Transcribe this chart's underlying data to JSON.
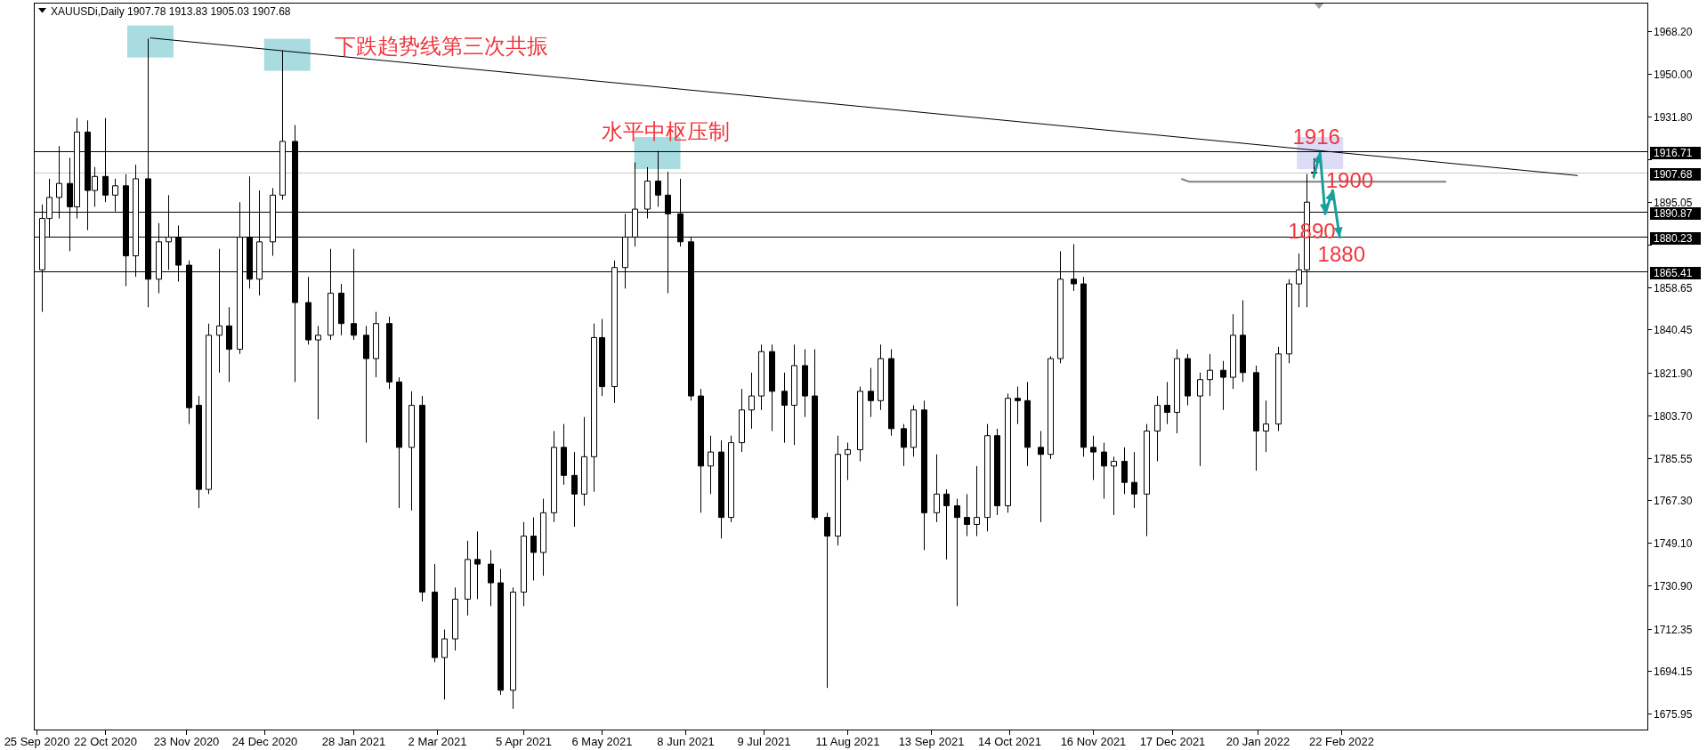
{
  "chart_data": {
    "type": "candlestick",
    "title": "XAUUSDi,Daily 1907.78 1913.83 1905.03 1907.68",
    "color": "#000000",
    "x": [
      "2020-09-27",
      "2020-09-30",
      "2020-10-04",
      "2020-10-08",
      "2020-10-11",
      "2020-10-15",
      "2020-10-18",
      "2020-10-22",
      "2020-10-26",
      "2020-10-30",
      "2020-11-03",
      "2020-11-08",
      "2020-11-12",
      "2020-11-16",
      "2020-11-20",
      "2020-11-24",
      "2020-11-28",
      "2020-12-02",
      "2020-12-06",
      "2020-12-10",
      "2020-12-14",
      "2020-12-18",
      "2020-12-22",
      "2020-12-27",
      "2020-12-31",
      "2021-01-05",
      "2021-01-10",
      "2021-01-14",
      "2021-01-19",
      "2021-01-23",
      "2021-01-28",
      "2021-02-02",
      "2021-02-06",
      "2021-02-11",
      "2021-02-15",
      "2021-02-20",
      "2021-02-24",
      "2021-03-01",
      "2021-03-05",
      "2021-03-09",
      "2021-03-14",
      "2021-03-18",
      "2021-03-23",
      "2021-03-27",
      "2021-04-01",
      "2021-04-05",
      "2021-04-09",
      "2021-04-13",
      "2021-04-17",
      "2021-04-21",
      "2021-04-25",
      "2021-04-29",
      "2021-05-03",
      "2021-05-06",
      "2021-05-11",
      "2021-05-15",
      "2021-05-19",
      "2021-05-24",
      "2021-05-28",
      "2021-06-01",
      "2021-06-06",
      "2021-06-10",
      "2021-06-14",
      "2021-06-18",
      "2021-06-22",
      "2021-06-26",
      "2021-06-30",
      "2021-07-04",
      "2021-07-08",
      "2021-07-12",
      "2021-07-17",
      "2021-07-21",
      "2021-07-25",
      "2021-07-29",
      "2021-08-03",
      "2021-08-07",
      "2021-08-11",
      "2021-08-16",
      "2021-08-20",
      "2021-08-24",
      "2021-08-28",
      "2021-09-02",
      "2021-09-06",
      "2021-09-10",
      "2021-09-15",
      "2021-09-19",
      "2021-09-23",
      "2021-09-27",
      "2021-10-01",
      "2021-10-05",
      "2021-10-09",
      "2021-10-13",
      "2021-10-17",
      "2021-10-21",
      "2021-10-26",
      "2021-10-30",
      "2021-11-03",
      "2021-11-08",
      "2021-11-12",
      "2021-11-16",
      "2021-11-20",
      "2021-11-24",
      "2021-11-28",
      "2021-12-02",
      "2021-12-07",
      "2021-12-11",
      "2021-12-15",
      "2021-12-19",
      "2021-12-23",
      "2021-12-28",
      "2022-01-01",
      "2022-01-06",
      "2022-01-10",
      "2022-01-14",
      "2022-01-19",
      "2022-01-23",
      "2022-01-28",
      "2022-02-01",
      "2022-02-05",
      "2022-02-08",
      "2022-02-11"
    ],
    "ohlc": [
      [
        1866,
        1894,
        1848,
        1888
      ],
      [
        1888,
        1905,
        1880,
        1897
      ],
      [
        1897,
        1919,
        1888,
        1903
      ],
      [
        1903,
        1914,
        1874,
        1893
      ],
      [
        1893,
        1931,
        1888,
        1925
      ],
      [
        1925,
        1930,
        1883,
        1900
      ],
      [
        1900,
        1910,
        1893,
        1906
      ],
      [
        1906,
        1931,
        1895,
        1898
      ],
      [
        1898,
        1905,
        1891,
        1902
      ],
      [
        1902,
        1907,
        1859,
        1872
      ],
      [
        1872,
        1911,
        1863,
        1905
      ],
      [
        1905,
        1965,
        1850,
        1862
      ],
      [
        1862,
        1886,
        1856,
        1878
      ],
      [
        1878,
        1898,
        1866,
        1880
      ],
      [
        1880,
        1885,
        1861,
        1868
      ],
      [
        1868,
        1870,
        1800,
        1807
      ],
      [
        1808,
        1812,
        1764,
        1772
      ],
      [
        1772,
        1843,
        1770,
        1838
      ],
      [
        1838,
        1875,
        1822,
        1842
      ],
      [
        1842,
        1850,
        1818,
        1832
      ],
      [
        1832,
        1895,
        1830,
        1880
      ],
      [
        1880,
        1906,
        1858,
        1862
      ],
      [
        1862,
        1900,
        1855,
        1878
      ],
      [
        1878,
        1901,
        1872,
        1898
      ],
      [
        1898,
        1960,
        1896,
        1921
      ],
      [
        1921,
        1928,
        1818,
        1852
      ],
      [
        1852,
        1863,
        1834,
        1836
      ],
      [
        1836,
        1842,
        1802,
        1838
      ],
      [
        1838,
        1875,
        1836,
        1856
      ],
      [
        1856,
        1860,
        1838,
        1843
      ],
      [
        1843,
        1875,
        1836,
        1838
      ],
      [
        1838,
        1842,
        1792,
        1828
      ],
      [
        1828,
        1848,
        1820,
        1843
      ],
      [
        1843,
        1846,
        1815,
        1818
      ],
      [
        1818,
        1820,
        1764,
        1790
      ],
      [
        1790,
        1814,
        1763,
        1808
      ],
      [
        1808,
        1812,
        1724,
        1728
      ],
      [
        1728,
        1740,
        1698,
        1700
      ],
      [
        1700,
        1712,
        1682,
        1708
      ],
      [
        1708,
        1730,
        1703,
        1725
      ],
      [
        1725,
        1750,
        1718,
        1742
      ],
      [
        1742,
        1754,
        1725,
        1740
      ],
      [
        1740,
        1746,
        1722,
        1732
      ],
      [
        1732,
        1738,
        1684,
        1686
      ],
      [
        1686,
        1730,
        1678,
        1728
      ],
      [
        1728,
        1758,
        1722,
        1752
      ],
      [
        1752,
        1760,
        1733,
        1745
      ],
      [
        1745,
        1768,
        1735,
        1762
      ],
      [
        1762,
        1797,
        1758,
        1790
      ],
      [
        1790,
        1800,
        1774,
        1778
      ],
      [
        1778,
        1788,
        1756,
        1770
      ],
      [
        1770,
        1803,
        1765,
        1786
      ],
      [
        1786,
        1843,
        1771,
        1837
      ],
      [
        1837,
        1845,
        1812,
        1816
      ],
      [
        1816,
        1870,
        1809,
        1867
      ],
      [
        1867,
        1890,
        1858,
        1880
      ],
      [
        1880,
        1912,
        1876,
        1892
      ],
      [
        1892,
        1910,
        1888,
        1904
      ],
      [
        1904,
        1917,
        1893,
        1898
      ],
      [
        1898,
        1908,
        1856,
        1890
      ],
      [
        1890,
        1905,
        1876,
        1878
      ],
      [
        1878,
        1880,
        1810,
        1812
      ],
      [
        1812,
        1815,
        1762,
        1782
      ],
      [
        1782,
        1795,
        1770,
        1788
      ],
      [
        1788,
        1793,
        1751,
        1760
      ],
      [
        1760,
        1795,
        1758,
        1792
      ],
      [
        1792,
        1815,
        1788,
        1806
      ],
      [
        1806,
        1822,
        1798,
        1812
      ],
      [
        1812,
        1834,
        1806,
        1831
      ],
      [
        1831,
        1834,
        1797,
        1814
      ],
      [
        1814,
        1822,
        1792,
        1808
      ],
      [
        1808,
        1834,
        1791,
        1825
      ],
      [
        1825,
        1832,
        1803,
        1812
      ],
      [
        1812,
        1832,
        1759,
        1760
      ],
      [
        1760,
        1762,
        1687,
        1752
      ],
      [
        1752,
        1795,
        1748,
        1787
      ],
      [
        1787,
        1792,
        1776,
        1789
      ],
      [
        1789,
        1816,
        1784,
        1814
      ],
      [
        1814,
        1824,
        1803,
        1810
      ],
      [
        1810,
        1834,
        1806,
        1828
      ],
      [
        1828,
        1832,
        1795,
        1798
      ],
      [
        1798,
        1800,
        1782,
        1790
      ],
      [
        1790,
        1808,
        1786,
        1806
      ],
      [
        1806,
        1810,
        1746,
        1762
      ],
      [
        1762,
        1787,
        1758,
        1770
      ],
      [
        1770,
        1772,
        1742,
        1765
      ],
      [
        1765,
        1768,
        1722,
        1760
      ],
      [
        1760,
        1770,
        1752,
        1757
      ],
      [
        1757,
        1782,
        1752,
        1760
      ],
      [
        1760,
        1800,
        1754,
        1795
      ],
      [
        1795,
        1798,
        1761,
        1765
      ],
      [
        1765,
        1813,
        1762,
        1811
      ],
      [
        1811,
        1816,
        1800,
        1810
      ],
      [
        1810,
        1818,
        1782,
        1790
      ],
      [
        1790,
        1797,
        1758,
        1787
      ],
      [
        1787,
        1829,
        1785,
        1828
      ],
      [
        1828,
        1874,
        1826,
        1862
      ],
      [
        1862,
        1877,
        1857,
        1860
      ],
      [
        1860,
        1863,
        1786,
        1790
      ],
      [
        1790,
        1795,
        1776,
        1788
      ],
      [
        1788,
        1792,
        1768,
        1782
      ],
      [
        1782,
        1786,
        1761,
        1784
      ],
      [
        1784,
        1790,
        1770,
        1775
      ],
      [
        1775,
        1788,
        1764,
        1770
      ],
      [
        1770,
        1800,
        1752,
        1797
      ],
      [
        1797,
        1812,
        1784,
        1808
      ],
      [
        1808,
        1818,
        1800,
        1805
      ],
      [
        1805,
        1832,
        1796,
        1828
      ],
      [
        1828,
        1830,
        1808,
        1812
      ],
      [
        1812,
        1822,
        1782,
        1819
      ],
      [
        1819,
        1830,
        1812,
        1823
      ],
      [
        1823,
        1827,
        1806,
        1820
      ],
      [
        1820,
        1847,
        1815,
        1838
      ],
      [
        1838,
        1853,
        1818,
        1822
      ],
      [
        1822,
        1825,
        1780,
        1797
      ],
      [
        1797,
        1810,
        1788,
        1800
      ],
      [
        1800,
        1833,
        1797,
        1830
      ],
      [
        1830,
        1862,
        1826,
        1860
      ],
      [
        1860,
        1873,
        1850,
        1866
      ],
      [
        1866,
        1907,
        1850,
        1895
      ],
      [
        1907.78,
        1913.83,
        1905.03,
        1907.68
      ]
    ],
    "series": [
      {
        "type": "line",
        "x": [
          "2020-11-09",
          "2021-01-02",
          "2022-05-26"
        ],
        "values": [
          1965.3,
          1959.6,
          1906.4
        ],
        "color": "#000000"
      },
      {
        "type": "line",
        "x": [
          "2021-12-21",
          "2021-12-24",
          "2022-04-04"
        ],
        "values": [
          1904.9,
          1903.7,
          1903.7
        ],
        "color": "#808080"
      },
      {
        "type": "line",
        "x": [
          "2022-02-11",
          "2022-02-13T12:00",
          "2022-02-15T12:00",
          "2022-02-18T12:00",
          "2022-02-21T06:00"
        ],
        "values": [
          1906,
          1916,
          1890,
          1900,
          1880
        ],
        "color": "#18a09c"
      }
    ],
    "ref_lines": [
      {
        "axis": "y",
        "value": 1916.71,
        "label": "1916.71",
        "color": "#000000"
      },
      {
        "axis": "y",
        "value": 1907.68,
        "label": "1907.68",
        "color": "#c8c8c8"
      },
      {
        "axis": "y",
        "value": 1890.87,
        "label": "1890.87",
        "color": "#000000"
      },
      {
        "axis": "y",
        "value": 1880.23,
        "label": "1880.23",
        "color": "#000000"
      },
      {
        "axis": "y",
        "value": 1865.41,
        "label": "1865.41",
        "color": "#000000"
      }
    ],
    "annotations": [
      "下跌趋势线第三次共振",
      {
        "text": "水平中枢压制",
        "x": "2021-05-28",
        "y": 1916
      },
      {
        "text": "1916",
        "x": "2022-02-13T12:00",
        "y": 1916
      },
      {
        "text": "1900",
        "x": "2022-02-18T12:00",
        "y": 1900
      },
      {
        "text": "1890",
        "x": "2022-02-15T12:00",
        "y": 1890
      },
      {
        "text": "1880",
        "x": "2022-02-21T06:00",
        "y": 1880
      }
    ],
    "xlim": [
      "2020-09-24",
      "2022-06-23"
    ],
    "xticks": [
      {
        "value": "2020-09-25",
        "label": "25 Sep 2020"
      },
      {
        "value": "2020-10-22",
        "label": "22 Oct 2020"
      },
      {
        "value": "2020-11-23",
        "label": "23 Nov 2020"
      },
      {
        "value": "2020-12-24",
        "label": "24 Dec 2020"
      },
      {
        "value": "2021-01-28",
        "label": "28 Jan 2021"
      },
      {
        "value": "2021-03-02",
        "label": "2 Mar 2021"
      },
      {
        "value": "2021-04-05",
        "label": "5 Apr 2021"
      },
      {
        "value": "2021-05-06",
        "label": "6 May 2021"
      },
      {
        "value": "2021-06-08",
        "label": "8 Jun 2021"
      },
      {
        "value": "2021-07-09",
        "label": "9 Jul 2021"
      },
      {
        "value": "2021-08-11",
        "label": "11 Aug 2021"
      },
      {
        "value": "2021-09-13",
        "label": "13 Sep 2021"
      },
      {
        "value": "2021-10-14",
        "label": "14 Oct 2021"
      },
      {
        "value": "2021-11-16",
        "label": "16 Nov 2021"
      },
      {
        "value": "2021-12-17",
        "label": "17 Dec 2021"
      },
      {
        "value": "2022-01-20",
        "label": "20 Jan 2022"
      },
      {
        "value": "2022-02-22",
        "label": "22 Feb 2022"
      }
    ],
    "ylim": [
      1668.8,
      1980.4
    ],
    "yticks": [
      {
        "value": 1968.2,
        "label": "1968.20"
      },
      {
        "value": 1950,
        "label": "1950.00"
      },
      {
        "value": 1931.8,
        "label": "1931.80"
      },
      {
        "value": 1913.25,
        "label": null
      },
      1895.05,
      {
        "value": 1876.85,
        "label": null
      },
      1858.65,
      1840.45,
      {
        "value": 1821.9,
        "label": "1821.90"
      },
      {
        "value": 1803.7,
        "label": "1803.70"
      },
      1785.55,
      {
        "value": 1767.3,
        "label": "1767.30"
      },
      {
        "value": 1749.1,
        "label": "1749.10"
      },
      {
        "value": 1730.9,
        "label": "1730.90"
      },
      1712.35,
      1694.15,
      1675.95
    ]
  }
}
